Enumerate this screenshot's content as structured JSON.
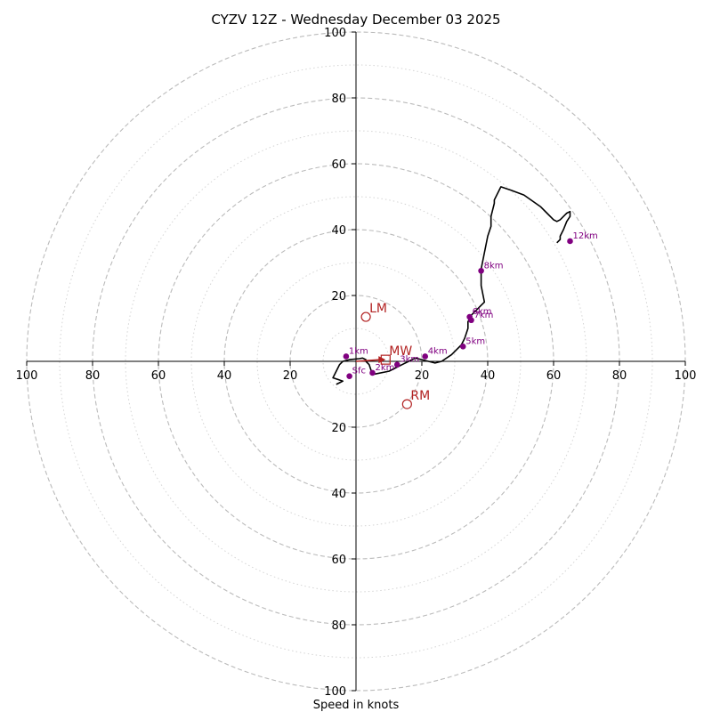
{
  "chart_data": {
    "type": "line",
    "title": "CYZV 12Z - Wednesday December 03 2025",
    "xlabel": "Speed in knots",
    "ylabel": "",
    "xlim": [
      -100,
      100
    ],
    "ylim": [
      -100,
      100
    ],
    "major_rings": [
      20,
      40,
      60,
      80,
      100
    ],
    "minor_rings": [
      10,
      30,
      50,
      70,
      90
    ],
    "axis_tick_labels": {
      "right": [
        "20",
        "40",
        "60",
        "80",
        "100"
      ],
      "left": [
        "20",
        "40",
        "60",
        "80",
        "100"
      ],
      "up": [
        "20",
        "40",
        "60",
        "80",
        "100"
      ],
      "down": [
        "20",
        "40",
        "60",
        "80",
        "100"
      ]
    },
    "grid": true,
    "colors": {
      "trace": "#000000",
      "height_markers": "#800080",
      "motion_markers": "#b22222",
      "major_ring": "#bbbbbb",
      "minor_ring": "#d4d4d4"
    },
    "hodograph": {
      "u": [
        -6,
        -4,
        -7,
        -6,
        -5,
        -4,
        -2,
        1,
        2,
        3,
        3,
        4,
        5,
        10,
        12,
        14,
        16,
        18,
        20,
        22,
        24,
        26,
        29,
        31,
        32,
        33,
        34,
        34,
        35,
        37,
        38,
        39,
        38,
        38,
        39,
        40,
        41,
        41,
        42,
        42,
        44,
        47,
        51,
        56,
        58,
        60,
        61,
        62,
        63,
        64,
        65,
        65,
        64,
        63,
        62,
        62,
        61
      ],
      "v": [
        -7,
        -6,
        -5,
        -3,
        -1,
        0,
        0.5,
        0.8,
        1,
        0.5,
        0,
        -1,
        -4,
        -3,
        -2,
        -1,
        0,
        1,
        0.5,
        0,
        -0.5,
        0,
        2,
        4,
        5,
        7,
        10,
        12,
        14,
        16,
        17,
        18,
        23,
        28,
        33,
        38,
        41,
        44,
        48,
        49,
        53,
        52,
        50.5,
        47,
        45,
        43,
        42.5,
        43,
        44,
        45,
        45.5,
        44,
        42.5,
        40,
        38,
        37,
        36
      ]
    },
    "height_markers": [
      {
        "label": "Sfc",
        "u": -2,
        "v": -4.5
      },
      {
        "label": "1km",
        "u": -3,
        "v": 1.5
      },
      {
        "label": "2km",
        "u": 5,
        "v": -3.5
      },
      {
        "label": "3km",
        "u": 12.5,
        "v": -1
      },
      {
        "label": "4km",
        "u": 21,
        "v": 1.5
      },
      {
        "label": "5km",
        "u": 32.5,
        "v": 4.5
      },
      {
        "label": "6km",
        "u": 34.5,
        "v": 13.5
      },
      {
        "label": "7km",
        "u": 35,
        "v": 12.5
      },
      {
        "label": "8km",
        "u": 38,
        "v": 27.5
      },
      {
        "label": "12km",
        "u": 65,
        "v": 36.5
      }
    ],
    "storm_motion": [
      {
        "label": "LM",
        "u": 3,
        "v": 13.5
      },
      {
        "label": "RM",
        "u": 15.5,
        "v": -13
      },
      {
        "label": "MW",
        "u": 9,
        "v": 0.5
      }
    ],
    "mean_wind_arrow": {
      "from_u": 0,
      "from_v": 0,
      "to_u": 9,
      "to_v": 0.5
    }
  }
}
